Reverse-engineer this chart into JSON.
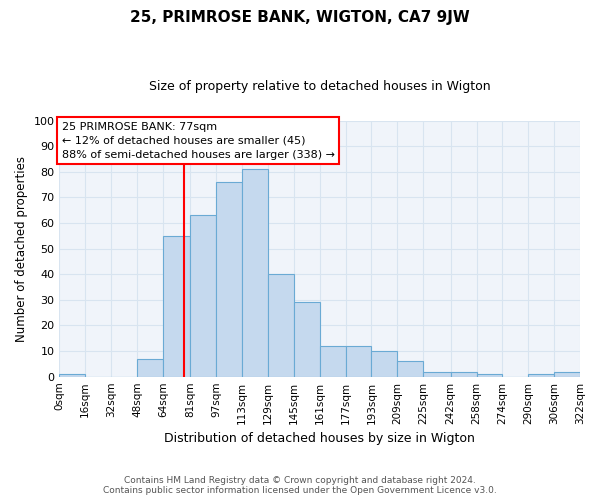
{
  "title": "25, PRIMROSE BANK, WIGTON, CA7 9JW",
  "subtitle": "Size of property relative to detached houses in Wigton",
  "xlabel": "Distribution of detached houses by size in Wigton",
  "ylabel": "Number of detached properties",
  "bin_edges": [
    0,
    16,
    32,
    48,
    64,
    81,
    97,
    113,
    129,
    145,
    161,
    177,
    193,
    209,
    225,
    242,
    258,
    274,
    290,
    306,
    322
  ],
  "bar_heights": [
    1,
    0,
    0,
    7,
    55,
    63,
    76,
    81,
    40,
    29,
    12,
    12,
    10,
    6,
    2,
    2,
    1,
    0,
    1,
    2
  ],
  "bar_color": "#c5d9ee",
  "bar_edgecolor": "#6aaad4",
  "red_line_x": 77,
  "ylim": [
    0,
    100
  ],
  "yticks": [
    0,
    10,
    20,
    30,
    40,
    50,
    60,
    70,
    80,
    90,
    100
  ],
  "xtick_labels": [
    "0sqm",
    "16sqm",
    "32sqm",
    "48sqm",
    "64sqm",
    "81sqm",
    "97sqm",
    "113sqm",
    "129sqm",
    "145sqm",
    "161sqm",
    "177sqm",
    "193sqm",
    "209sqm",
    "225sqm",
    "242sqm",
    "258sqm",
    "274sqm",
    "290sqm",
    "306sqm",
    "322sqm"
  ],
  "annotation_title": "25 PRIMROSE BANK: 77sqm",
  "annotation_line1": "← 12% of detached houses are smaller (45)",
  "annotation_line2": "88% of semi-detached houses are larger (338) →",
  "footer1": "Contains HM Land Registry data © Crown copyright and database right 2024.",
  "footer2": "Contains public sector information licensed under the Open Government Licence v3.0.",
  "bg_color": "#ffffff",
  "plot_bg_color": "#f0f4fa",
  "grid_color": "#d8e4f0"
}
